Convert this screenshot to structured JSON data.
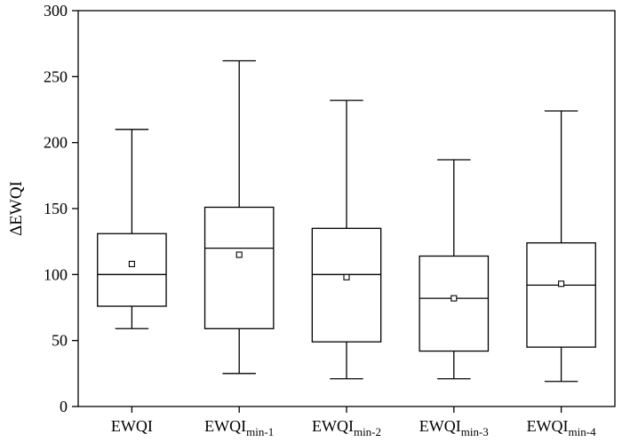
{
  "chart_data": {
    "type": "box",
    "title": "",
    "xlabel": "",
    "ylabel": "ΔEWQI",
    "ylim": [
      0,
      300
    ],
    "yticks": [
      0,
      50,
      100,
      150,
      200,
      250,
      300
    ],
    "grid": false,
    "categories": [
      {
        "base": "EWQI",
        "sub": ""
      },
      {
        "base": "EWQI",
        "sub": "min-1"
      },
      {
        "base": "EWQI",
        "sub": "min-2"
      },
      {
        "base": "EWQI",
        "sub": "min-3"
      },
      {
        "base": "EWQI",
        "sub": "min-4"
      }
    ],
    "boxes": [
      {
        "whisker_low": 59,
        "q1": 76,
        "median": 100,
        "q3": 131,
        "whisker_high": 210,
        "mean": 108
      },
      {
        "whisker_low": 25,
        "q1": 59,
        "median": 120,
        "q3": 151,
        "whisker_high": 262,
        "mean": 115
      },
      {
        "whisker_low": 21,
        "q1": 49,
        "median": 100,
        "q3": 135,
        "whisker_high": 232,
        "mean": 98
      },
      {
        "whisker_low": 21,
        "q1": 42,
        "median": 82,
        "q3": 114,
        "whisker_high": 187,
        "mean": 82
      },
      {
        "whisker_low": 19,
        "q1": 45,
        "median": 92,
        "q3": 124,
        "whisker_high": 224,
        "mean": 93
      }
    ]
  }
}
